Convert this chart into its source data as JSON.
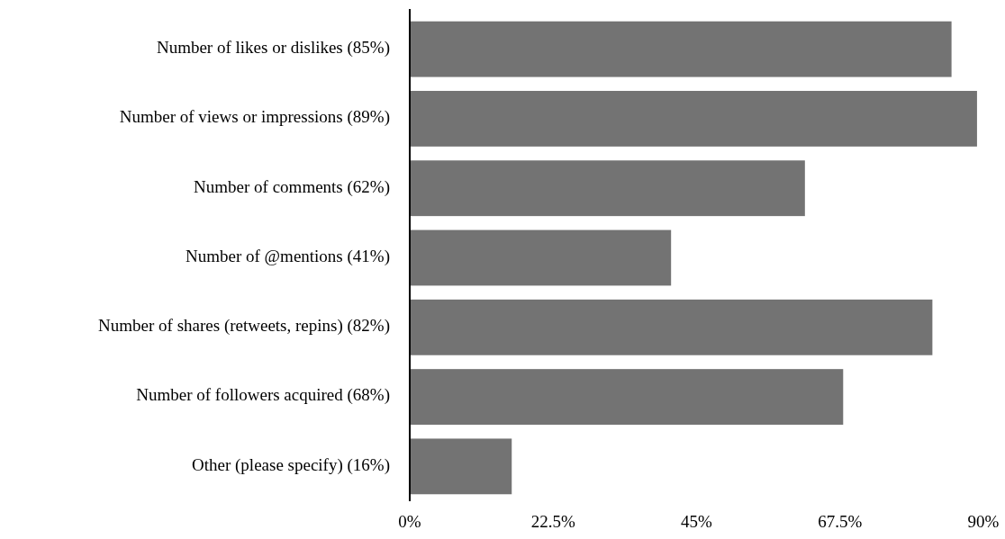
{
  "chart_data": {
    "type": "bar",
    "orientation": "horizontal",
    "categories": [
      "Number of likes or dislikes (85%)",
      "Number of views or impressions (89%)",
      "Number of comments (62%)",
      "Number of @mentions (41%)",
      "Number of shares (retweets, repins) (82%)",
      "Number of followers acquired (68%)",
      "Other (please specify) (16%)"
    ],
    "values": [
      85,
      89,
      62,
      41,
      82,
      68,
      16
    ],
    "color": "#737373",
    "xlim": [
      0,
      90
    ],
    "xticks": [
      {
        "value": 0,
        "label": "0%"
      },
      {
        "value": 22.5,
        "label": "22.5%"
      },
      {
        "value": 45,
        "label": "45%"
      },
      {
        "value": 67.5,
        "label": "67.5%"
      },
      {
        "value": 90,
        "label": "90%"
      }
    ],
    "grid": false
  }
}
